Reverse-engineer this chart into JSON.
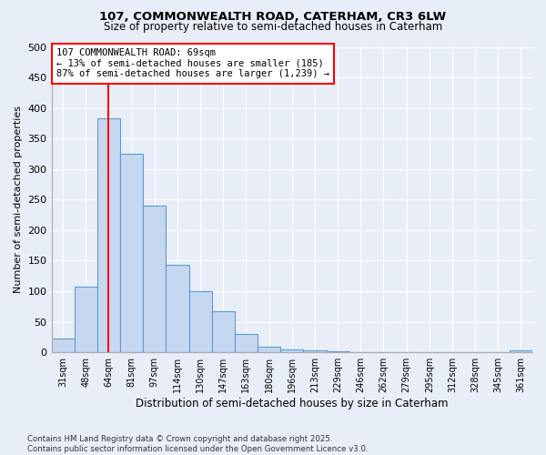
{
  "title1": "107, COMMONWEALTH ROAD, CATERHAM, CR3 6LW",
  "title2": "Size of property relative to semi-detached houses in Caterham",
  "xlabel": "Distribution of semi-detached houses by size in Caterham",
  "ylabel": "Number of semi-detached properties",
  "annotation_line1": "107 COMMONWEALTH ROAD: 69sqm",
  "annotation_line2": "← 13% of semi-detached houses are smaller (185)",
  "annotation_line3": "87% of semi-detached houses are larger (1,239) →",
  "footer1": "Contains HM Land Registry data © Crown copyright and database right 2025.",
  "footer2": "Contains public sector information licensed under the Open Government Licence v3.0.",
  "bins": [
    "31sqm",
    "48sqm",
    "64sqm",
    "81sqm",
    "97sqm",
    "114sqm",
    "130sqm",
    "147sqm",
    "163sqm",
    "180sqm",
    "196sqm",
    "213sqm",
    "229sqm",
    "246sqm",
    "262sqm",
    "279sqm",
    "295sqm",
    "312sqm",
    "328sqm",
    "345sqm",
    "361sqm"
  ],
  "values": [
    22,
    107,
    383,
    325,
    240,
    143,
    100,
    68,
    30,
    9,
    5,
    3,
    2,
    1,
    0,
    1,
    0,
    0,
    0,
    0,
    3
  ],
  "bar_color": "#c5d8f0",
  "bar_edge_color": "#5b9bd5",
  "vline_x_idx": 2,
  "ylim": [
    0,
    500
  ],
  "yticks": [
    0,
    50,
    100,
    150,
    200,
    250,
    300,
    350,
    400,
    450,
    500
  ],
  "background_color": "#e8eef7",
  "grid_color": "#ffffff"
}
